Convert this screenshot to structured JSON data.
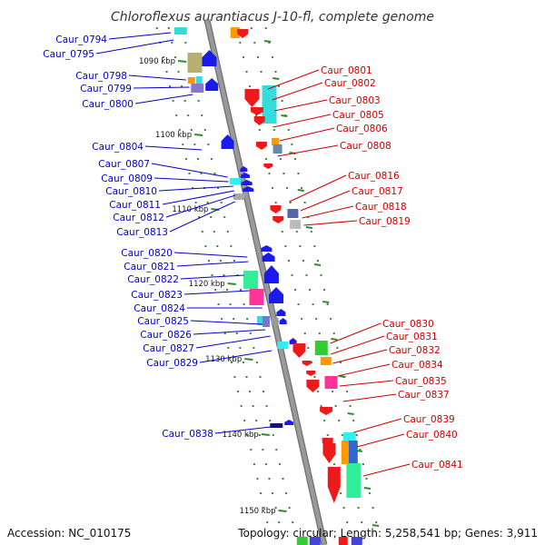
{
  "header": {
    "title": "Chloroflexus aurantiacus J-10-fl, complete genome"
  },
  "footer": {
    "accession": "Accession: NC_010175",
    "summary": "Topology: circular; Length: 5,258,541 bp; Genes: 3,911"
  },
  "colors": {
    "backbone": "#9a9a9a",
    "left_labels": "#0000cc",
    "right_labels": "#cc0000",
    "scale_dash": "#2e8b2e"
  },
  "scale_ticks": [
    "1090 kbp",
    "1100 kbp",
    "1110 kbp",
    "1120 kbp",
    "1130 kbp",
    "1140 kbp",
    "1150 kbp"
  ],
  "genes_left": [
    "Caur_0794",
    "Caur_0795",
    "Caur_0798",
    "Caur_0799",
    "Caur_0800",
    "Caur_0804",
    "Caur_0807",
    "Caur_0809",
    "Caur_0810",
    "Caur_0811",
    "Caur_0812",
    "Caur_0813",
    "Caur_0820",
    "Caur_0821",
    "Caur_0822",
    "Caur_0823",
    "Caur_0824",
    "Caur_0825",
    "Caur_0826",
    "Caur_0827",
    "Caur_0829",
    "Caur_0838"
  ],
  "genes_right": [
    "Caur_0801",
    "Caur_0802",
    "Caur_0803",
    "Caur_0805",
    "Caur_0806",
    "Caur_0808",
    "Caur_0816",
    "Caur_0817",
    "Caur_0818",
    "Caur_0819",
    "Caur_0830",
    "Caur_0831",
    "Caur_0832",
    "Caur_0834",
    "Caur_0835",
    "Caur_0837",
    "Caur_0839",
    "Caur_0840",
    "Caur_0841"
  ]
}
